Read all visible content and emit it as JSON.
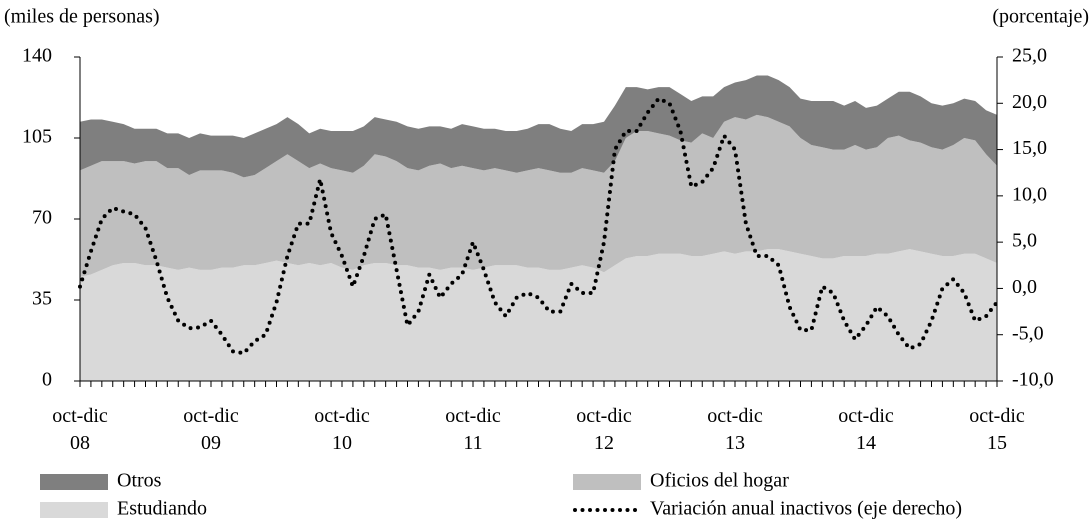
{
  "chart_data": {
    "type": "area",
    "y_label": "(miles de personas)",
    "y2_label": "(porcentaje)",
    "categories": [
      "oct-dic\n08",
      null,
      null,
      null,
      null,
      null,
      null,
      null,
      null,
      null,
      null,
      null,
      "oct-dic\n09",
      null,
      null,
      null,
      null,
      null,
      null,
      null,
      null,
      null,
      null,
      null,
      "oct-dic\n10",
      null,
      null,
      null,
      null,
      null,
      null,
      null,
      null,
      null,
      null,
      null,
      "oct-dic\n11",
      null,
      null,
      null,
      null,
      null,
      null,
      null,
      null,
      null,
      null,
      null,
      "oct-dic\n12",
      null,
      null,
      null,
      null,
      null,
      null,
      null,
      null,
      null,
      null,
      null,
      "oct-dic\n13",
      null,
      null,
      null,
      null,
      null,
      null,
      null,
      null,
      null,
      null,
      null,
      "oct-dic\n14",
      null,
      null,
      null,
      null,
      null,
      null,
      null,
      null,
      null,
      null,
      null,
      "oct-dic\n15"
    ],
    "series": [
      {
        "name": "Estudiando",
        "color": "#d9d9d9",
        "values": [
          45,
          46,
          48,
          50,
          51,
          51,
          50,
          50,
          49,
          48,
          49,
          48,
          48,
          49,
          49,
          50,
          50,
          51,
          52,
          51,
          50,
          51,
          50,
          51,
          49,
          48,
          50,
          51,
          51,
          50,
          50,
          49,
          49,
          48,
          49,
          49,
          48,
          49,
          50,
          50,
          50,
          49,
          49,
          48,
          48,
          49,
          50,
          49,
          47,
          50,
          53,
          54,
          54,
          55,
          55,
          55,
          54,
          54,
          55,
          56,
          55,
          56,
          56,
          57,
          57,
          56,
          55,
          54,
          53,
          53,
          54,
          54,
          54,
          55,
          55,
          56,
          57,
          56,
          55,
          54,
          54,
          55,
          55,
          53,
          51
        ]
      },
      {
        "name": "Oficios del hogar",
        "color": "#bfbfbf",
        "values": [
          46,
          47,
          47,
          45,
          44,
          43,
          45,
          45,
          43,
          44,
          40,
          43,
          43,
          42,
          41,
          38,
          39,
          41,
          43,
          47,
          45,
          41,
          44,
          41,
          42,
          42,
          43,
          47,
          46,
          45,
          42,
          42,
          44,
          46,
          43,
          44,
          44,
          42,
          42,
          41,
          40,
          42,
          43,
          43,
          42,
          41,
          42,
          42,
          43,
          45,
          52,
          54,
          54,
          52,
          51,
          49,
          49,
          53,
          50,
          56,
          59,
          57,
          59,
          57,
          55,
          54,
          50,
          48,
          48,
          47,
          46,
          48,
          46,
          46,
          50,
          50,
          47,
          47,
          46,
          46,
          48,
          50,
          49,
          45,
          42
        ]
      },
      {
        "name": "Otros",
        "color": "#7f7f7f",
        "values": [
          21,
          20,
          18,
          17,
          16,
          15,
          14,
          14,
          15,
          15,
          16,
          16,
          15,
          15,
          16,
          17,
          18,
          17,
          16,
          16,
          16,
          15,
          15,
          16,
          17,
          18,
          17,
          16,
          16,
          17,
          18,
          18,
          17,
          16,
          17,
          18,
          18,
          18,
          17,
          17,
          18,
          18,
          19,
          20,
          19,
          18,
          19,
          20,
          22,
          24,
          22,
          19,
          18,
          20,
          21,
          20,
          18,
          16,
          18,
          15,
          15,
          17,
          17,
          18,
          18,
          17,
          17,
          19,
          20,
          21,
          19,
          19,
          18,
          18,
          17,
          19,
          21,
          20,
          19,
          19,
          18,
          17,
          17,
          19,
          22
        ]
      },
      {
        "name": "Variación anual inactivos (eje derecho)",
        "type": "line",
        "style": "dotted",
        "axis": "y2",
        "color": "#000000",
        "values": [
          0.2,
          4,
          7.5,
          8.7,
          8.3,
          8,
          6.5,
          3,
          -1,
          -3.5,
          -4.3,
          -4.2,
          -3.5,
          -5,
          -6.8,
          -7,
          -5.7,
          -5,
          -1.5,
          3.5,
          7,
          7,
          11.8,
          6,
          3.5,
          0.2,
          3.5,
          7.5,
          8,
          2,
          -4,
          -2.5,
          1.5,
          -1,
          0.5,
          1.5,
          5,
          2,
          -1.5,
          -3,
          -1,
          -0.5,
          -1,
          -2.5,
          -2.5,
          0.5,
          -0.5,
          -0.5,
          5,
          15,
          17,
          17,
          19,
          20.5,
          20,
          17,
          11,
          11.5,
          13,
          16.5,
          15,
          7,
          3.5,
          3.5,
          2.5,
          -2,
          -4.5,
          -4.5,
          0.2,
          -0.5,
          -3.5,
          -5.5,
          -4,
          -2,
          -3,
          -5,
          -6.5,
          -6,
          -3.5,
          0,
          1,
          -0.5,
          -3.5,
          -3,
          -1.5
        ]
      }
    ],
    "ylim": [
      0,
      140
    ],
    "yticks": [
      0,
      35,
      70,
      105,
      140
    ],
    "y2lim": [
      -10,
      25
    ],
    "y2ticks": [
      {
        "value": -10,
        "label": "-10,0"
      },
      {
        "value": -5,
        "label": "-5,0"
      },
      {
        "value": 0,
        "label": "0,0"
      },
      {
        "value": 5,
        "label": "5,0"
      },
      {
        "value": 10,
        "label": "10,0"
      },
      {
        "value": 15,
        "label": "15,0"
      },
      {
        "value": 20,
        "label": "20,0"
      },
      {
        "value": 25,
        "label": "25,0"
      }
    ],
    "grid": false,
    "legend": "bottom"
  }
}
